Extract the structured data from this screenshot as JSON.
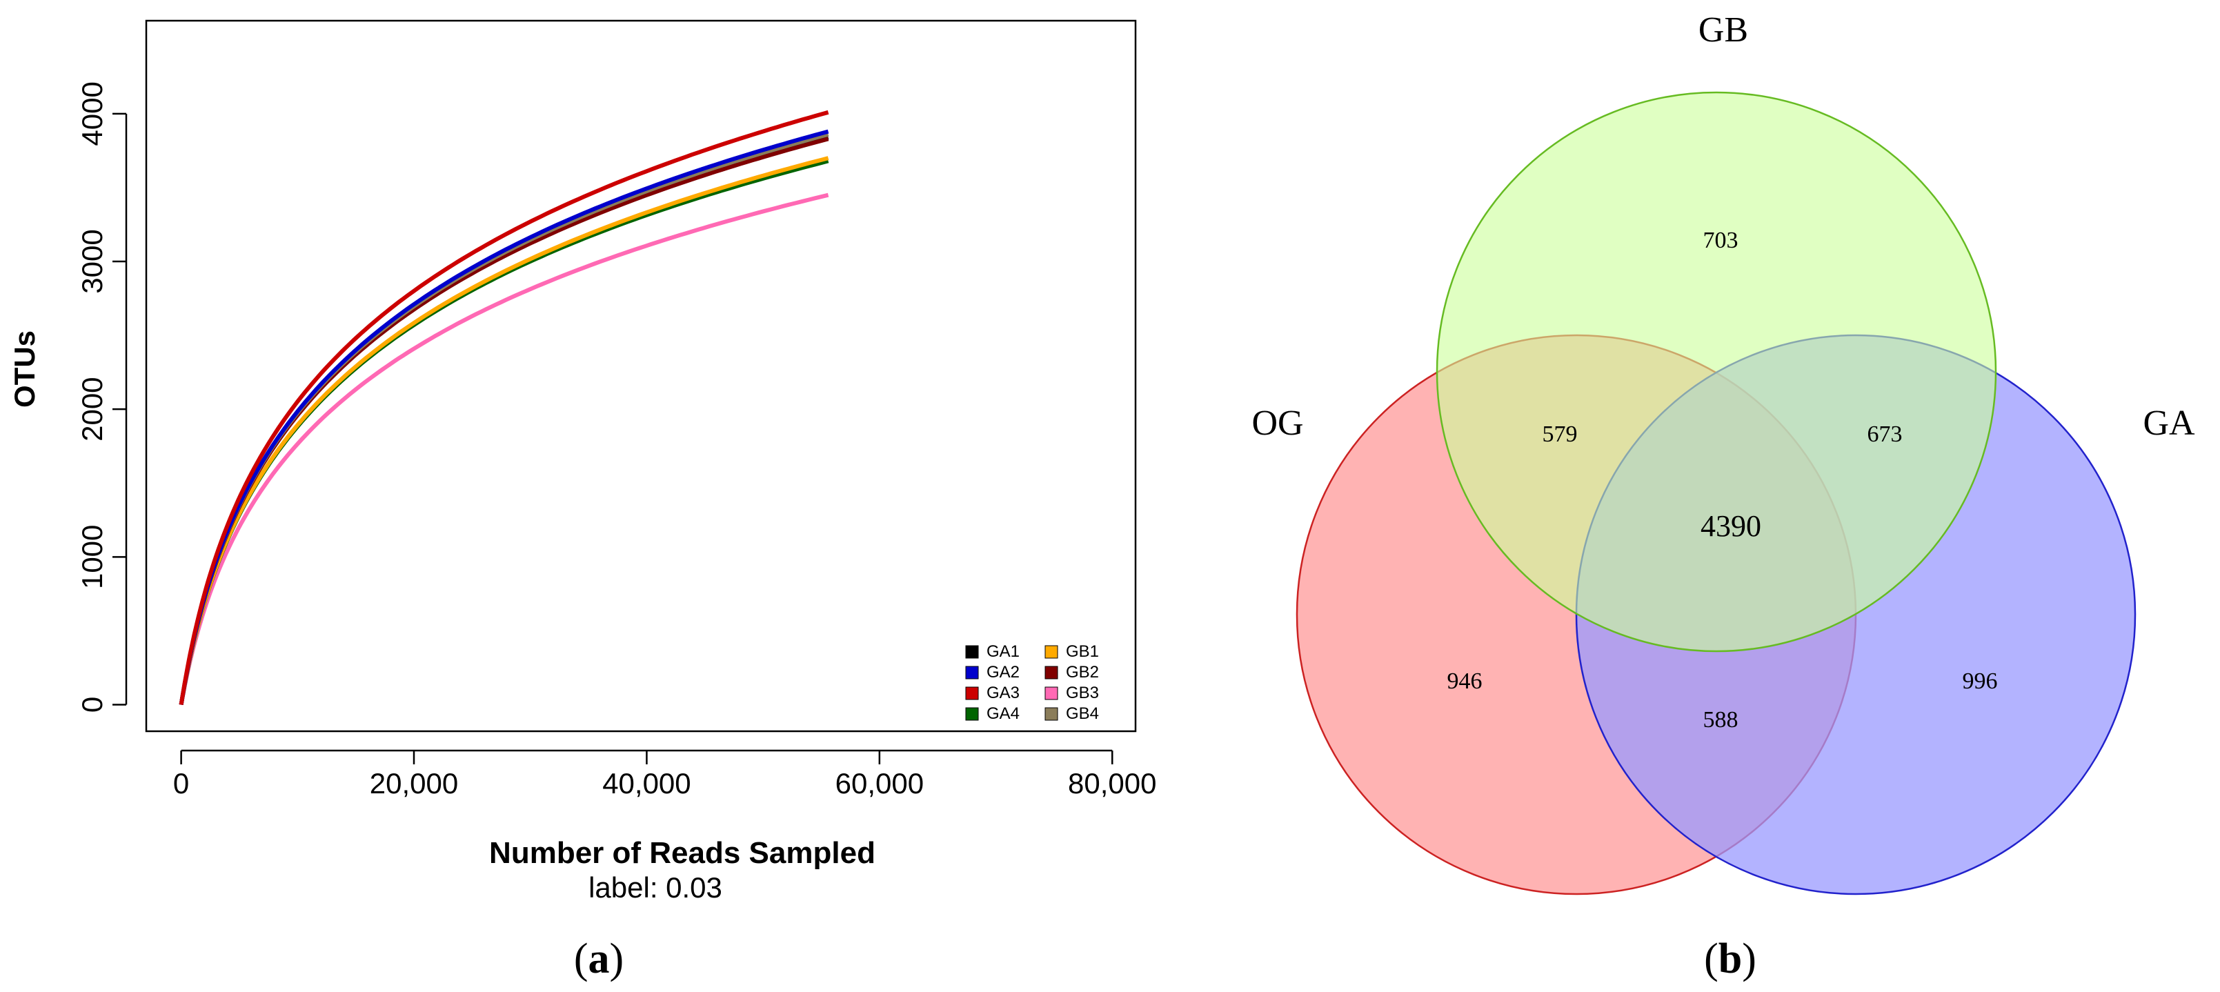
{
  "panel_a": {
    "caption": "(a)",
    "caption_letter": "a",
    "chart_data": {
      "type": "line",
      "title": "",
      "xlabel": "Number of Reads Sampled",
      "subtitle": "label: 0.03",
      "ylabel": "OTUs",
      "xlim": [
        -3000,
        82000
      ],
      "ylim": [
        -180,
        4630
      ],
      "xticks": [
        0,
        20000,
        40000,
        60000,
        80000
      ],
      "xtick_labels": [
        "0",
        "20,000",
        "40,000",
        "60,000",
        "80,000"
      ],
      "yticks": [
        0,
        1000,
        2000,
        3000,
        4000
      ],
      "ytick_labels": [
        "0",
        "1000",
        "2000",
        "3000",
        "4000"
      ],
      "grid": false,
      "legend_position": "bottom-right",
      "series": [
        {
          "name": "GA1",
          "color": "#000000",
          "x_max": 55600,
          "y_final": 3840
        },
        {
          "name": "GA2",
          "color": "#0000cc",
          "x_max": 55600,
          "y_final": 3880
        },
        {
          "name": "GA3",
          "color": "#cc0000",
          "x_max": 55600,
          "y_final": 4010
        },
        {
          "name": "GA4",
          "color": "#006400",
          "x_max": 55600,
          "y_final": 3680
        },
        {
          "name": "GB1",
          "color": "#ffaa00",
          "x_max": 55600,
          "y_final": 3700
        },
        {
          "name": "GB2",
          "color": "#800000",
          "x_max": 55600,
          "y_final": 3830
        },
        {
          "name": "GB3",
          "color": "#ff69b4",
          "x_max": 55600,
          "y_final": 3450
        },
        {
          "name": "GB4",
          "color": "#8b7d5a",
          "x_max": 55600,
          "y_final": 3860
        }
      ]
    }
  },
  "panel_b": {
    "caption": "(b)",
    "caption_letter": "b",
    "chart_data": {
      "type": "venn",
      "sets": [
        {
          "name": "GB",
          "fill": "#ccff99",
          "stroke": "#66bb22"
        },
        {
          "name": "OG",
          "fill": "#ff9999",
          "stroke": "#cc2222"
        },
        {
          "name": "GA",
          "fill": "#9999ff",
          "stroke": "#2222cc"
        }
      ],
      "regions": {
        "GB_only": 703,
        "OG_only": 946,
        "GA_only": 996,
        "GB_OG": 579,
        "GB_GA": 673,
        "OG_GA": 588,
        "GB_OG_GA": 4390
      }
    }
  }
}
